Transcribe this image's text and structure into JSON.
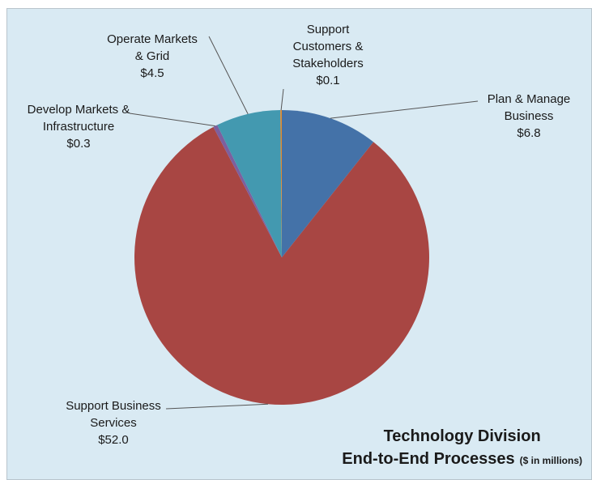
{
  "chart_data": {
    "type": "pie",
    "title_line1": "Technology Division",
    "title_line2": "End-to-End Processes",
    "units": "($ in millions)",
    "slices": [
      {
        "name_lines": [
          "Plan & Manage",
          "Business"
        ],
        "value": 6.8,
        "value_label": "$6.8",
        "color": "#4472a8"
      },
      {
        "name_lines": [
          "Support Business",
          "Services"
        ],
        "value": 52.0,
        "value_label": "$52.0",
        "color": "#a84643"
      },
      {
        "name_lines": [
          "Develop Markets &",
          "Infrastructure"
        ],
        "value": 0.3,
        "value_label": "$0.3",
        "color": "#7d5f9e"
      },
      {
        "name_lines": [
          "Operate Markets",
          "& Grid"
        ],
        "value": 4.5,
        "value_label": "$4.5",
        "color": "#4399b0"
      },
      {
        "name_lines": [
          "Support",
          "Customers &",
          "Stakeholders"
        ],
        "value": 0.1,
        "value_label": "$0.1",
        "color": "#e08a2f"
      }
    ],
    "start": "12 o'clock",
    "direction": "clockwise"
  }
}
